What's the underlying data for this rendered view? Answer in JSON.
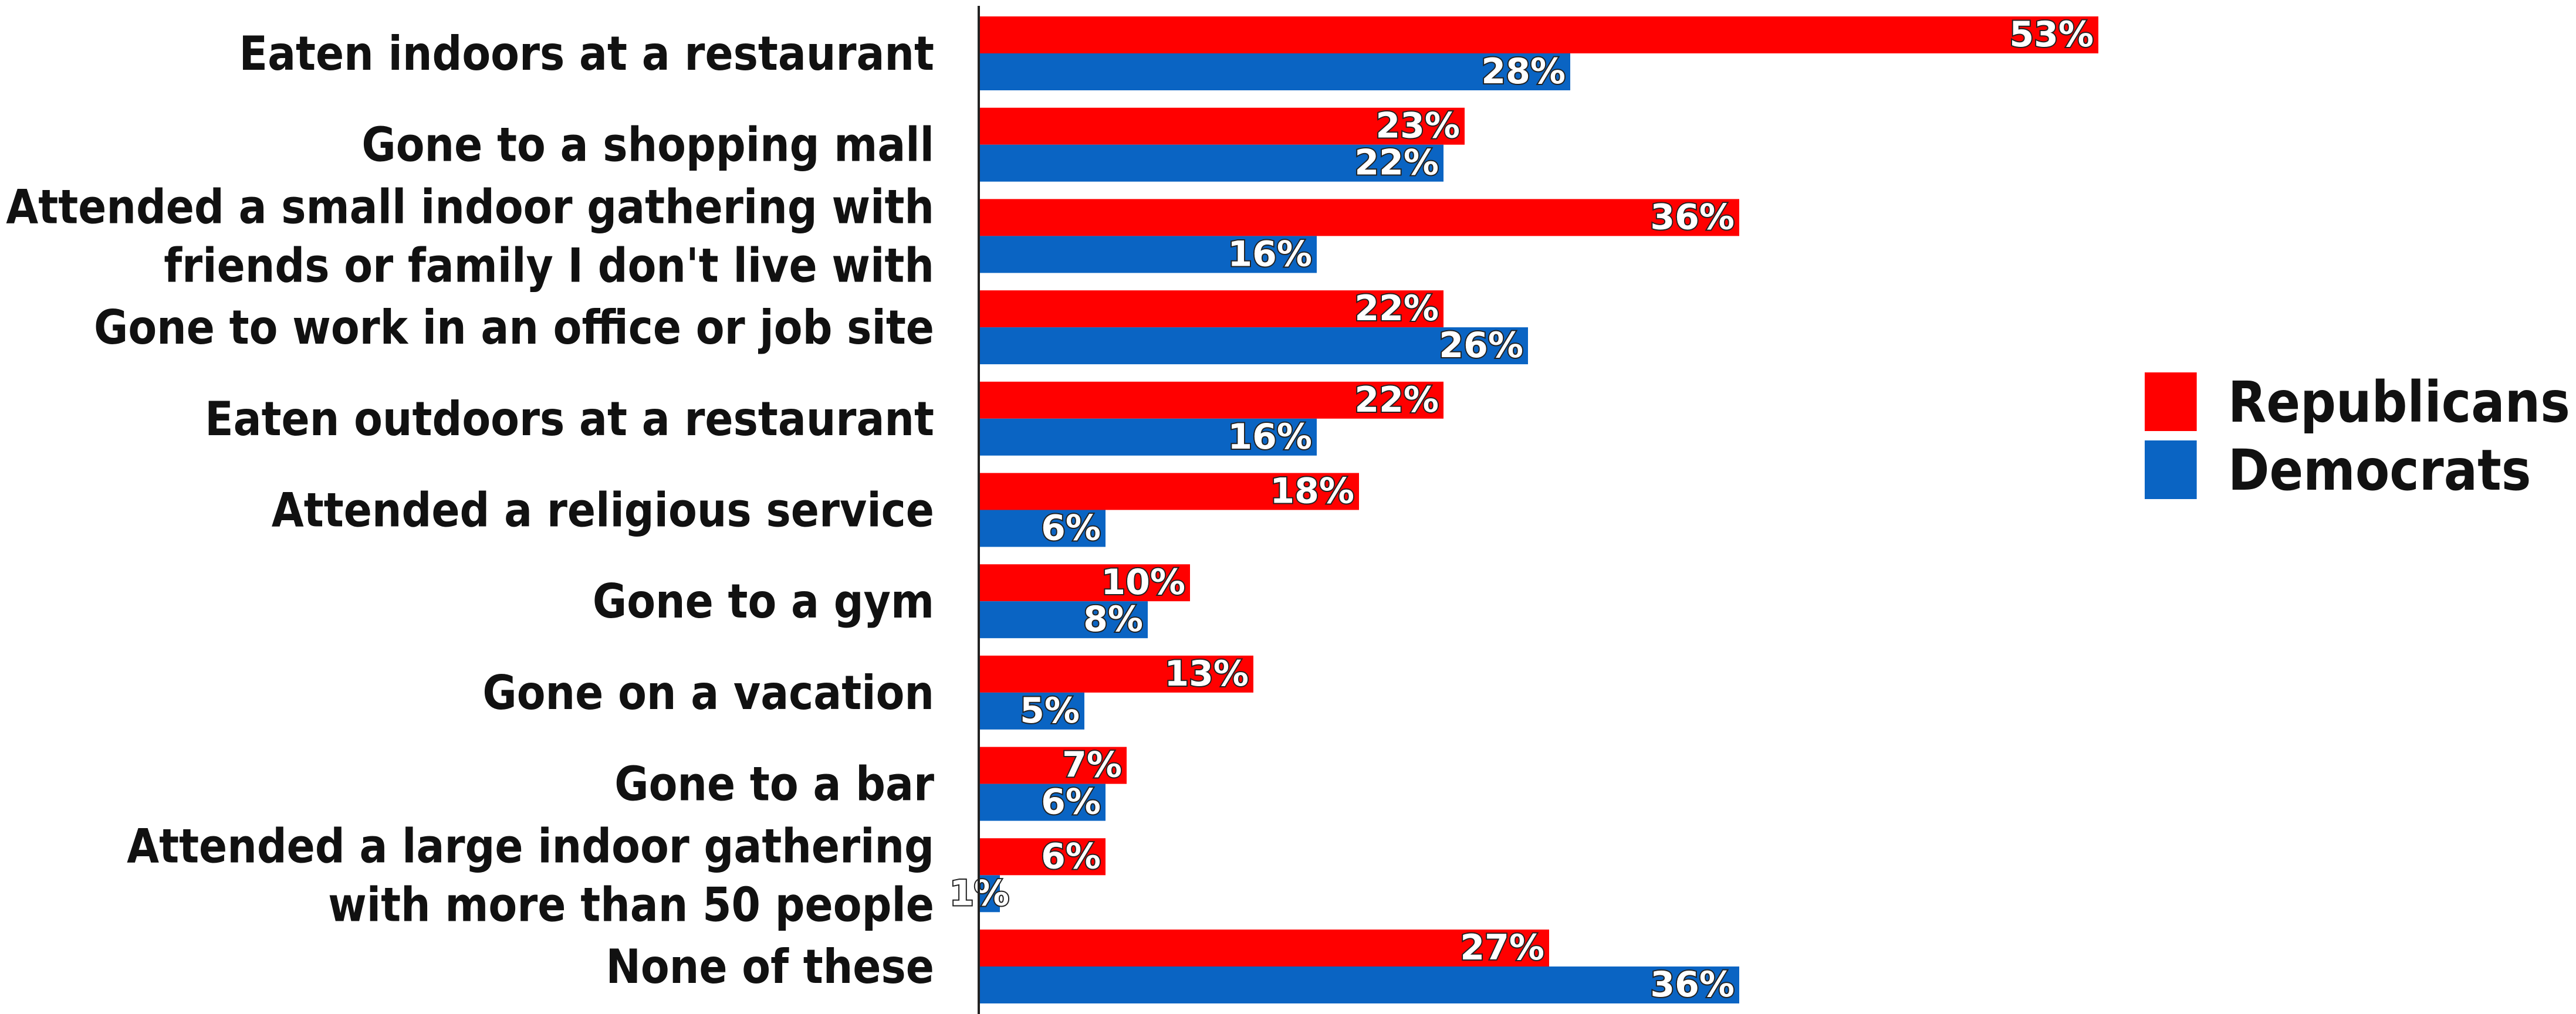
{
  "chart_data": {
    "type": "bar",
    "orientation": "horizontal",
    "categories": [
      [
        "Eaten indoors at a restaurant"
      ],
      [
        "Gone to a shopping mall"
      ],
      [
        "Attended a small indoor gathering with",
        "friends or family I don't live with"
      ],
      [
        "Gone to work in an office or job site"
      ],
      [
        "Eaten outdoors at a restaurant"
      ],
      [
        "Attended a religious service"
      ],
      [
        "Gone to a gym"
      ],
      [
        "Gone on a vacation"
      ],
      [
        "Gone to a bar"
      ],
      [
        "Attended a large indoor gathering",
        "with more than 50 people"
      ],
      [
        "None of these"
      ]
    ],
    "series": [
      {
        "name": "Republicans",
        "color": "#ff0000",
        "values": [
          53,
          23,
          36,
          22,
          22,
          18,
          10,
          13,
          7,
          6,
          27
        ]
      },
      {
        "name": "Democrats",
        "color": "#0a64c3",
        "values": [
          28,
          22,
          16,
          26,
          16,
          6,
          8,
          5,
          6,
          1,
          36
        ]
      }
    ],
    "value_suffix": "%",
    "xlim": [
      0,
      100
    ],
    "grid": false,
    "legend_position": "right"
  }
}
